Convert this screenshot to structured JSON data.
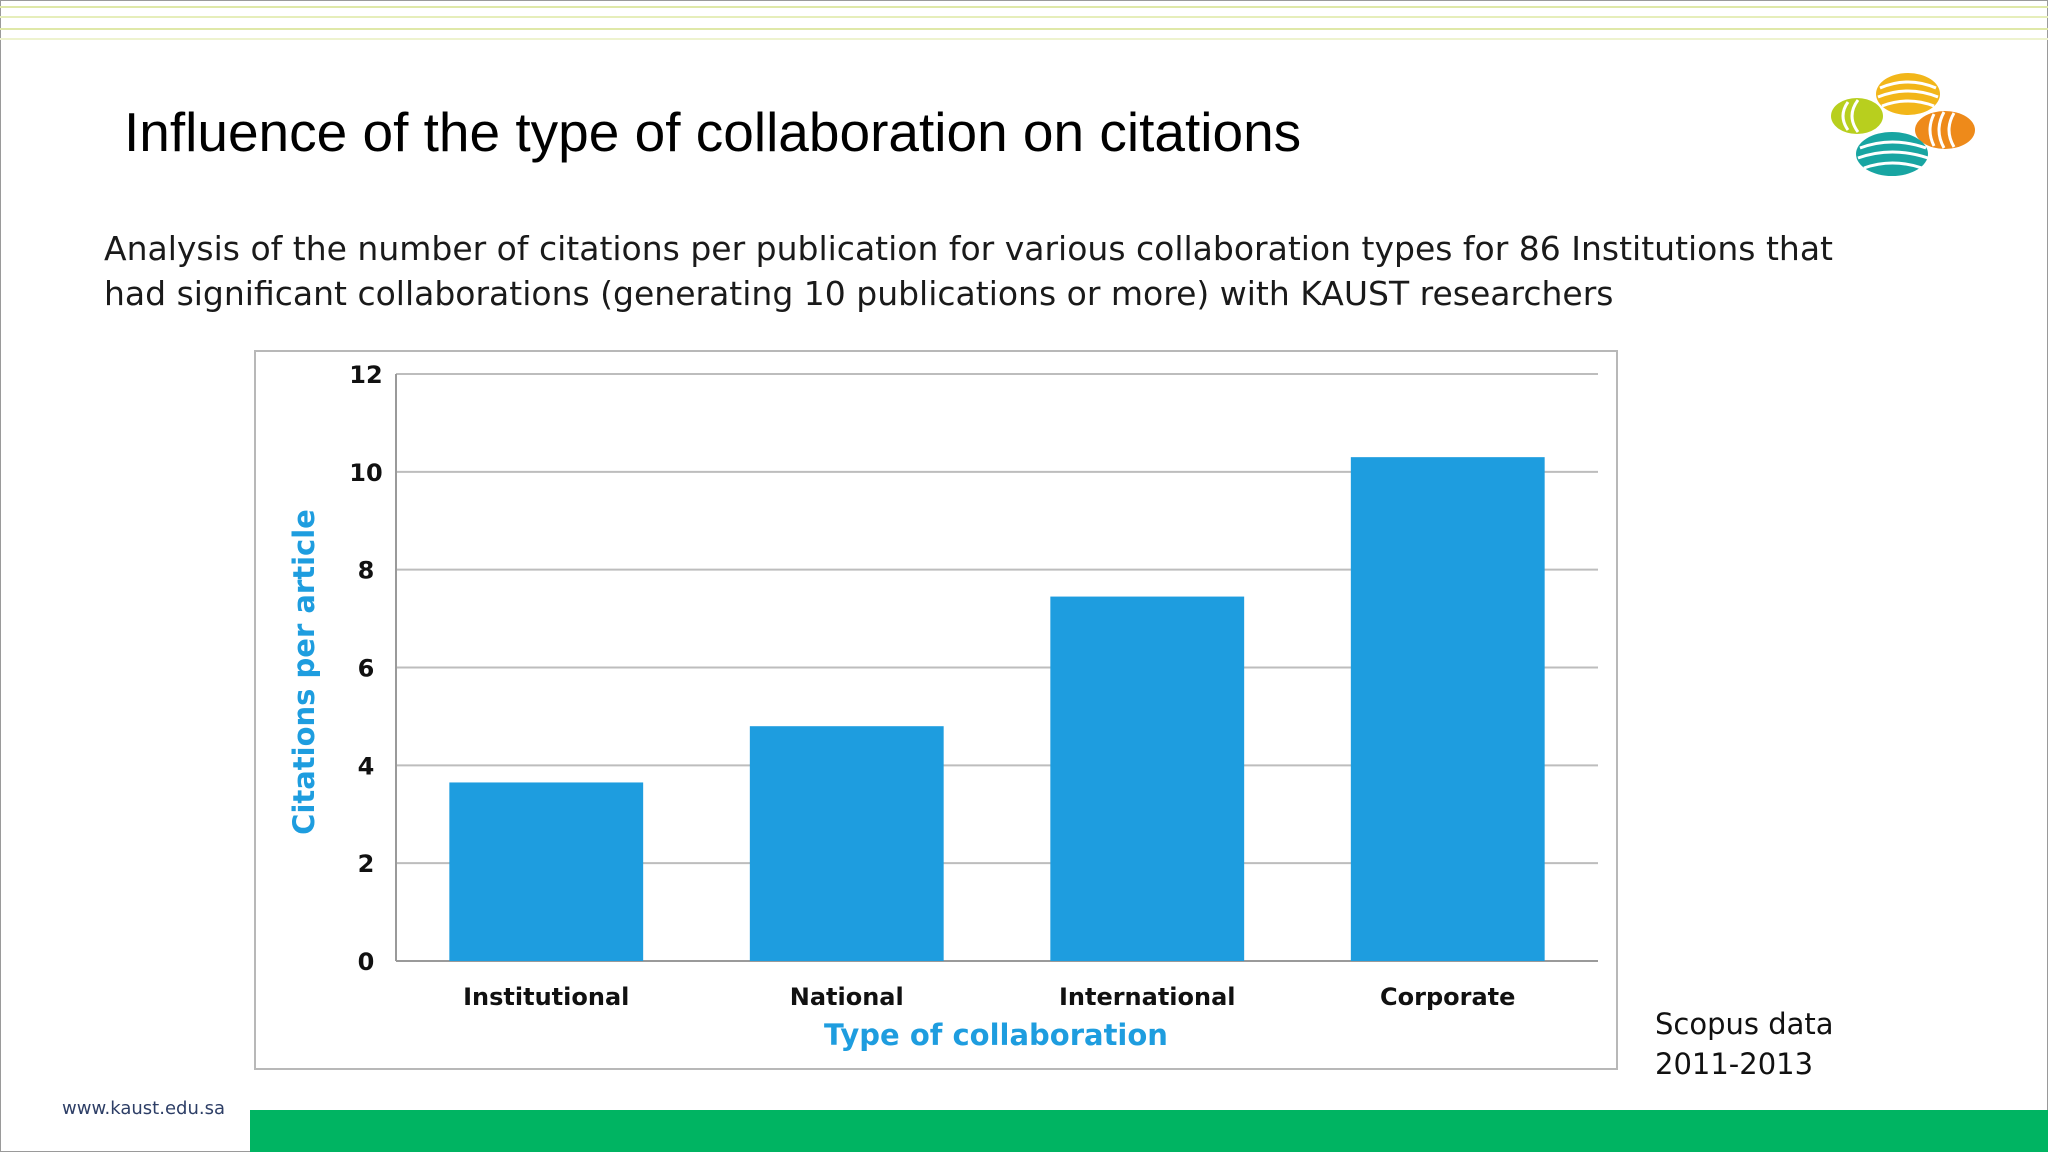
{
  "slide": {
    "title": "Influence of the type of collaboration on citations",
    "subtitle": "Analysis of the number of citations per publication for various collaboration types for 86 Institutions that had significant collaborations (generating 10 publications or more) with KAUST researchers",
    "source_line1": "Scopus data",
    "source_line2": "2011-2013",
    "footer_url": "www.kaust.edu.sa",
    "colors": {
      "bar": "#1e9ddf",
      "axis_title": "#1e9ddf",
      "footer": "#00b462"
    }
  },
  "chart_data": {
    "type": "bar",
    "categories": [
      "Institutional",
      "National",
      "International",
      "Corporate"
    ],
    "values": [
      3.65,
      4.8,
      7.45,
      10.3
    ],
    "xlabel": "Type of collaboration",
    "ylabel": "Citations per article",
    "ylim": [
      0,
      12
    ],
    "yticks": [
      0,
      2,
      4,
      6,
      8,
      10,
      12
    ],
    "grid": true
  }
}
